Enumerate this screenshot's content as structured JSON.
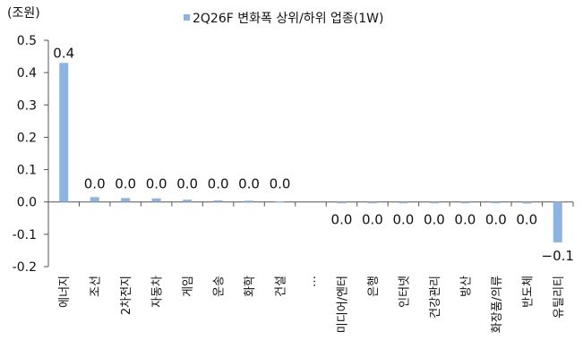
{
  "chart_data": {
    "type": "bar",
    "unit_label": "(조원)",
    "legend": {
      "label": "2Q26F 변화폭 상위/하위 업종(1W)",
      "placement": "top-center"
    },
    "colors": {
      "bar": "#8DB3E2",
      "axis": "#555555"
    },
    "ylim": [
      -0.2,
      0.5
    ],
    "yticks": [
      -0.2,
      -0.1,
      0.0,
      0.1,
      0.2,
      0.3,
      0.4,
      0.5
    ],
    "ytick_labels": [
      "-0.2",
      "-0.1",
      "0.0",
      "0.1",
      "0.2",
      "0.3",
      "0.4",
      "0.5"
    ],
    "grid": false,
    "categories": [
      "에너지",
      "조선",
      "2차전지",
      "자동차",
      "게임",
      "운송",
      "화학",
      "건설",
      "…",
      "미디어/엔터",
      "은행",
      "인터넷",
      "건강관리",
      "방산",
      "화장품/의류",
      "반도체",
      "유틸리티"
    ],
    "values": [
      0.43,
      0.015,
      0.012,
      0.011,
      0.007,
      0.005,
      0.004,
      0.002,
      null,
      -0.001,
      -0.001,
      -0.001,
      -0.002,
      -0.003,
      -0.004,
      -0.005,
      -0.125
    ],
    "data_labels": [
      "0.4",
      "0.0",
      "0.0",
      "0.0",
      "0.0",
      "0.0",
      "0.0",
      "0.0",
      "",
      "0.0",
      "0.0",
      "0.0",
      "0.0",
      "0.0",
      "0.0",
      "0.0",
      "−0.1"
    ]
  }
}
